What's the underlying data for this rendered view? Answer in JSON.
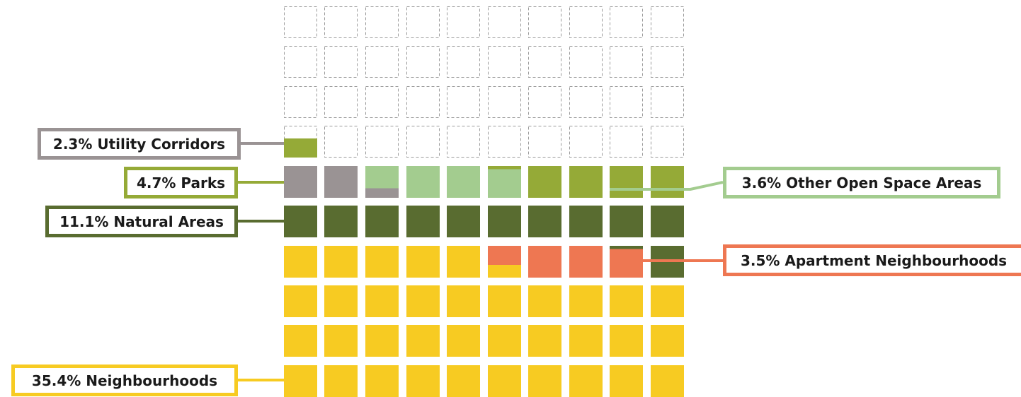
{
  "chart_data": {
    "type": "waffle",
    "grid": {
      "rows": 10,
      "columns": 10,
      "unit": "square"
    },
    "empty_cell_style": "dashed-outline",
    "series": [
      {
        "name": "Neighbourhoods",
        "value": 35.4,
        "color": "#F7CB22"
      },
      {
        "name": "Apartment Neighbourhoods",
        "value": 3.5,
        "color": "#EE7752"
      },
      {
        "name": "Natural Areas",
        "value": 11.1,
        "color": "#596C30"
      },
      {
        "name": "Utility Corridors",
        "value": 2.3,
        "color": "#9A9394"
      },
      {
        "name": "Other Open Space Areas",
        "value": 3.6,
        "color": "#A3CC8F"
      },
      {
        "name": "Parks",
        "value": 4.7,
        "color": "#95AA37"
      }
    ],
    "labels": {
      "utility": "2.3% Utility Corridors",
      "parks": "4.7% Parks",
      "natural": "11.1% Natural Areas",
      "other_open": "3.6% Other Open Space Areas",
      "apartment": "3.5% Apartment Neighbourhoods",
      "neighbourhoods": "35.4% Neighbourhoods"
    }
  }
}
